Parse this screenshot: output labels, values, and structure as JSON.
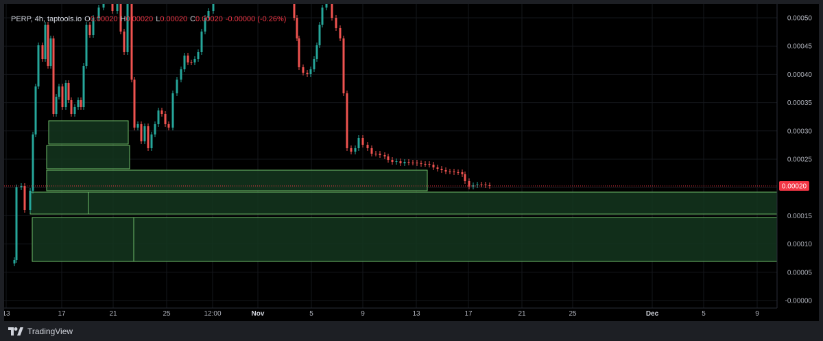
{
  "legend": {
    "symbol": "PERP, 4h, taptools.io",
    "o_label": "O",
    "o_value": "0.00020",
    "h_label": "H",
    "h_value": "0.00020",
    "l_label": "L",
    "l_value": "0.00020",
    "c_label": "C",
    "c_value": "0.00020",
    "change": "-0.00000 (-0.26%)"
  },
  "price_axis": {
    "labels": [
      "0.00050",
      "0.00045",
      "0.00040",
      "0.00035",
      "0.00030",
      "0.00025",
      "0.00015",
      "0.00010",
      "0.00005",
      "-0.00000"
    ],
    "values": [
      0.0005,
      0.00045,
      0.0004,
      0.00035,
      0.0003,
      0.00025,
      0.00015,
      0.0001,
      5e-05,
      0
    ],
    "last_price_label": "0.00020",
    "last_price_value": 0.0002
  },
  "time_axis": {
    "labels": [
      "13",
      "17",
      "21",
      "25",
      "12:00",
      "Nov",
      "5",
      "9",
      "13",
      "17",
      "21",
      "25",
      "Dec",
      "5",
      "9"
    ],
    "bold": [
      false,
      false,
      false,
      false,
      false,
      true,
      false,
      false,
      false,
      false,
      false,
      false,
      true,
      false,
      false
    ]
  },
  "colors": {
    "up": "#26a69a",
    "down": "#ef5350",
    "zone_fill": "#14361e",
    "zone_stroke": "#6fbf6a",
    "last_price": "#f23645"
  },
  "footer": {
    "brand": "TradingView"
  }
}
